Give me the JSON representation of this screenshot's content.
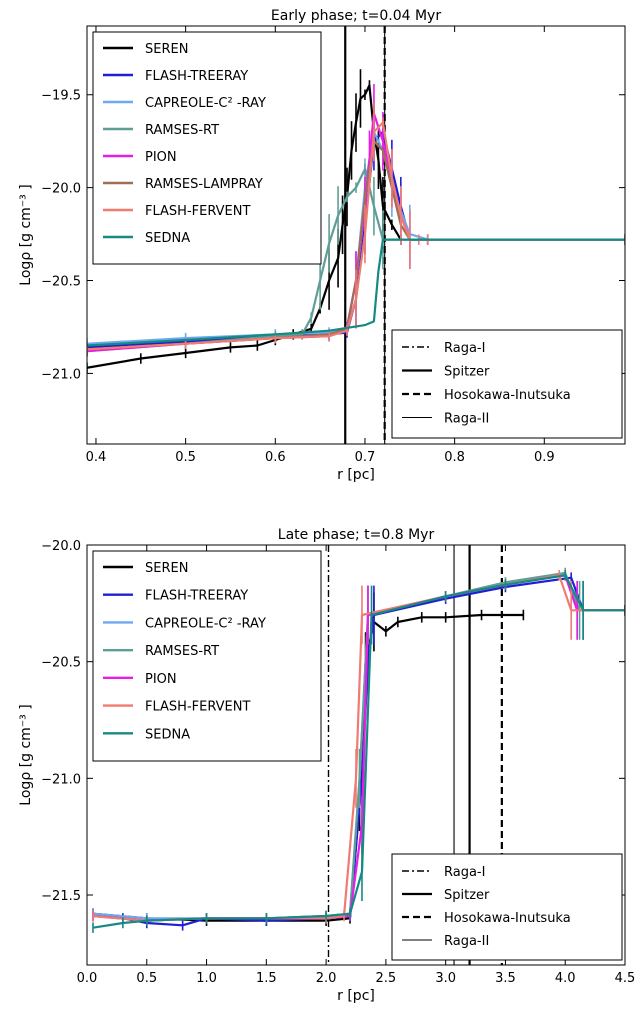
{
  "chart_data": [
    {
      "type": "line",
      "title": "Early phase; t=0.04 Myr",
      "xlabel": "r [pc]",
      "ylabel": "Logρ [g cm⁻³ ]",
      "xlim": [
        0.39,
        0.99
      ],
      "ylim": [
        -21.38,
        -19.13
      ],
      "xticks": [
        0.4,
        0.5,
        0.6,
        0.7,
        0.8,
        0.9
      ],
      "xtick_labels": [
        "0.4",
        "0.5",
        "0.6",
        "0.7",
        "0.8",
        "0.9"
      ],
      "yticks": [
        -21.0,
        -20.5,
        -20.0,
        -19.5
      ],
      "ytick_labels": [
        "−21.0",
        "−20.5",
        "−20.0",
        "−19.5"
      ],
      "grid": false,
      "legend_position": "top-left",
      "series": [
        {
          "name": "SEREN",
          "color": "#000000",
          "x": [
            0.39,
            0.45,
            0.5,
            0.55,
            0.58,
            0.6,
            0.62,
            0.64,
            0.65,
            0.66,
            0.67,
            0.675,
            0.68,
            0.685,
            0.69,
            0.695,
            0.7,
            0.705,
            0.71,
            0.715,
            0.72,
            0.73,
            0.74
          ],
          "y": [
            -20.97,
            -20.92,
            -20.89,
            -20.86,
            -20.85,
            -20.82,
            -20.79,
            -20.76,
            -20.65,
            -20.5,
            -20.38,
            -20.2,
            -20.05,
            -19.8,
            -19.65,
            -19.52,
            -19.5,
            -19.45,
            -19.7,
            -19.85,
            -20.1,
            -20.2,
            -20.28
          ],
          "has_errorbars": true
        },
        {
          "name": "FLASH-TREERAY",
          "color": "#1f1fd4",
          "x": [
            0.39,
            0.5,
            0.6,
            0.66,
            0.68,
            0.69,
            0.7,
            0.71,
            0.72,
            0.73,
            0.74,
            0.75,
            0.77,
            0.99
          ],
          "y": [
            -20.86,
            -20.83,
            -20.8,
            -20.79,
            -20.78,
            -20.6,
            -20.2,
            -19.75,
            -19.7,
            -19.9,
            -20.1,
            -20.28,
            -20.28,
            -20.28
          ],
          "has_errorbars": true
        },
        {
          "name": "CAPREOLE-C² -RAY",
          "color": "#6ea8f0",
          "x": [
            0.39,
            0.5,
            0.6,
            0.66,
            0.68,
            0.69,
            0.7,
            0.71,
            0.72,
            0.73,
            0.75,
            0.77,
            0.99
          ],
          "y": [
            -20.84,
            -20.81,
            -20.79,
            -20.78,
            -20.76,
            -20.5,
            -20.0,
            -19.7,
            -19.8,
            -20.0,
            -20.25,
            -20.28,
            -20.28
          ],
          "has_errorbars": true
        },
        {
          "name": "RAMSES-RT",
          "color": "#5f9e96",
          "x": [
            0.39,
            0.5,
            0.6,
            0.63,
            0.64,
            0.65,
            0.66,
            0.67,
            0.68,
            0.69,
            0.7,
            0.71,
            0.72,
            0.74,
            0.99
          ],
          "y": [
            -20.88,
            -20.84,
            -20.8,
            -20.79,
            -20.7,
            -20.5,
            -20.3,
            -20.15,
            -20.05,
            -20.0,
            -19.9,
            -20.1,
            -20.28,
            -20.28,
            -20.28
          ],
          "has_errorbars": true
        },
        {
          "name": "PION",
          "color": "#e61ee6",
          "x": [
            0.39,
            0.5,
            0.6,
            0.66,
            0.68,
            0.69,
            0.7,
            0.705,
            0.71,
            0.72,
            0.73,
            0.74,
            0.75,
            0.77,
            0.99
          ],
          "y": [
            -20.88,
            -20.84,
            -20.81,
            -20.8,
            -20.75,
            -20.5,
            -20.1,
            -19.85,
            -19.6,
            -19.75,
            -19.95,
            -20.15,
            -20.28,
            -20.28,
            -20.28
          ],
          "has_errorbars": true
        },
        {
          "name": "RAMSES-LAMPRAY",
          "color": "#9e6f52",
          "x": [
            0.39,
            0.5,
            0.6,
            0.66,
            0.68,
            0.69,
            0.7,
            0.71,
            0.72,
            0.73,
            0.74,
            0.75,
            0.77,
            0.99
          ],
          "y": [
            -20.87,
            -20.84,
            -20.81,
            -20.79,
            -20.76,
            -20.5,
            -20.05,
            -19.75,
            -19.8,
            -20.0,
            -20.2,
            -20.28,
            -20.28,
            -20.28
          ],
          "has_errorbars": false
        },
        {
          "name": "FLASH-FERVENT",
          "color": "#ef7b72",
          "x": [
            0.39,
            0.5,
            0.6,
            0.66,
            0.68,
            0.69,
            0.7,
            0.71,
            0.72,
            0.73,
            0.74,
            0.75,
            0.76,
            0.77,
            0.99
          ],
          "y": [
            -20.87,
            -20.84,
            -20.81,
            -20.8,
            -20.77,
            -20.6,
            -20.25,
            -19.7,
            -19.65,
            -19.95,
            -20.15,
            -20.28,
            -20.28,
            -20.28,
            -20.28
          ],
          "has_errorbars": true
        },
        {
          "name": "SEDNA",
          "color": "#168a82",
          "x": [
            0.39,
            0.5,
            0.6,
            0.66,
            0.7,
            0.71,
            0.715,
            0.72,
            0.99
          ],
          "y": [
            -20.85,
            -20.82,
            -20.79,
            -20.77,
            -20.74,
            -20.72,
            -20.45,
            -20.28,
            -20.28
          ],
          "has_errorbars": false
        }
      ],
      "vlines": [
        {
          "name": "Raga-I",
          "x": 0.678,
          "style": "dashdot",
          "width": 1.4
        },
        {
          "name": "Spitzer",
          "x": 0.678,
          "style": "solid",
          "width": 2.2
        },
        {
          "name": "Hosokawa-Inutsuka",
          "x": 0.722,
          "style": "dashed",
          "width": 2.2
        },
        {
          "name": "Raga-II",
          "x": 0.722,
          "style": "solid",
          "width": 1.1
        }
      ]
    },
    {
      "type": "line",
      "title": "Late phase; t=0.8 Myr",
      "xlabel": "r [pc]",
      "ylabel": "Logρ [g cm⁻³ ]",
      "xlim": [
        0.0,
        4.5
      ],
      "ylim": [
        -21.8,
        -20.0
      ],
      "xticks": [
        0.0,
        0.5,
        1.0,
        1.5,
        2.0,
        2.5,
        3.0,
        3.5,
        4.0,
        4.5
      ],
      "xtick_labels": [
        "0.0",
        "0.5",
        "1.0",
        "1.5",
        "2.0",
        "2.5",
        "3.0",
        "3.5",
        "4.0",
        "4.5"
      ],
      "yticks": [
        -21.5,
        -21.0,
        -20.5,
        -20.0
      ],
      "ytick_labels": [
        "−21.5",
        "−21.0",
        "−20.5",
        "−20.0"
      ],
      "grid": false,
      "legend_position": "top-left",
      "series": [
        {
          "name": "SEREN",
          "color": "#000000",
          "x": [
            0.05,
            0.5,
            1.0,
            1.5,
            2.0,
            2.2,
            2.28,
            2.33,
            2.4,
            2.5,
            2.6,
            2.8,
            3.0,
            3.3,
            3.65
          ],
          "y": [
            -21.58,
            -21.6,
            -21.61,
            -21.61,
            -21.61,
            -21.6,
            -21.1,
            -20.5,
            -20.33,
            -20.37,
            -20.33,
            -20.31,
            -20.31,
            -20.3,
            -20.3
          ],
          "has_errorbars": true
        },
        {
          "name": "FLASH-TREERAY",
          "color": "#1f1fd4",
          "x": [
            0.05,
            0.3,
            0.5,
            0.8,
            1.0,
            1.5,
            2.0,
            2.2,
            2.3,
            2.35,
            2.4,
            3.0,
            3.5,
            4.05,
            4.15,
            4.5
          ],
          "y": [
            -21.58,
            -21.6,
            -21.62,
            -21.63,
            -21.6,
            -21.61,
            -21.6,
            -21.59,
            -21.0,
            -20.5,
            -20.3,
            -20.23,
            -20.18,
            -20.14,
            -20.28,
            -20.28
          ],
          "has_errorbars": true
        },
        {
          "name": "CAPREOLE-C² -RAY",
          "color": "#6ea8f0",
          "x": [
            0.05,
            0.5,
            1.0,
            1.5,
            2.0,
            2.2,
            2.28,
            2.35,
            3.0,
            3.5,
            4.0,
            4.1,
            4.5
          ],
          "y": [
            -21.58,
            -21.6,
            -21.6,
            -21.6,
            -21.59,
            -21.58,
            -21.0,
            -20.3,
            -20.22,
            -20.17,
            -20.13,
            -20.28,
            -20.28
          ],
          "has_errorbars": true
        },
        {
          "name": "RAMSES-RT",
          "color": "#5f9e96",
          "x": [
            0.05,
            0.5,
            1.0,
            1.5,
            2.0,
            2.2,
            2.28,
            2.35,
            3.0,
            3.5,
            4.0,
            4.12,
            4.5
          ],
          "y": [
            -21.59,
            -21.61,
            -21.6,
            -21.6,
            -21.59,
            -21.58,
            -21.0,
            -20.3,
            -20.22,
            -20.16,
            -20.12,
            -20.28,
            -20.28
          ],
          "has_errorbars": true
        },
        {
          "name": "PION",
          "color": "#e61ee6",
          "x": [
            0.05,
            0.5,
            1.0,
            1.5,
            2.0,
            2.2,
            2.3,
            2.35,
            3.0,
            3.5,
            4.0,
            4.1,
            4.5
          ],
          "y": [
            -21.59,
            -21.61,
            -21.6,
            -21.6,
            -21.6,
            -21.59,
            -21.2,
            -20.3,
            -20.22,
            -20.17,
            -20.13,
            -20.28,
            -20.28
          ],
          "has_errorbars": true
        },
        {
          "name": "FLASH-FERVENT",
          "color": "#ef7b72",
          "x": [
            0.05,
            0.5,
            1.0,
            1.5,
            2.0,
            2.15,
            2.25,
            2.3,
            3.0,
            3.5,
            3.95,
            4.05,
            4.5
          ],
          "y": [
            -21.59,
            -21.61,
            -21.6,
            -21.6,
            -21.6,
            -21.59,
            -21.0,
            -20.3,
            -20.22,
            -20.17,
            -20.13,
            -20.28,
            -20.28
          ],
          "has_errorbars": true
        },
        {
          "name": "SEDNA",
          "color": "#168a82",
          "x": [
            0.05,
            0.3,
            0.5,
            1.0,
            1.5,
            2.0,
            2.2,
            2.3,
            2.38,
            3.0,
            3.5,
            4.0,
            4.15,
            4.5
          ],
          "y": [
            -21.64,
            -21.62,
            -21.61,
            -21.6,
            -21.6,
            -21.59,
            -21.58,
            -21.4,
            -20.3,
            -20.22,
            -20.17,
            -20.13,
            -20.28,
            -20.28
          ],
          "has_errorbars": true
        }
      ],
      "vlines": [
        {
          "name": "Raga-I",
          "x": 2.02,
          "style": "dashdot",
          "width": 1.4
        },
        {
          "name": "Spitzer",
          "x": 3.2,
          "style": "solid",
          "width": 2.2
        },
        {
          "name": "Hosokawa-Inutsuka",
          "x": 3.47,
          "style": "dashed",
          "width": 2.2
        },
        {
          "name": "Raga-II",
          "x": 3.07,
          "style": "solid",
          "width": 1.1
        }
      ]
    }
  ]
}
